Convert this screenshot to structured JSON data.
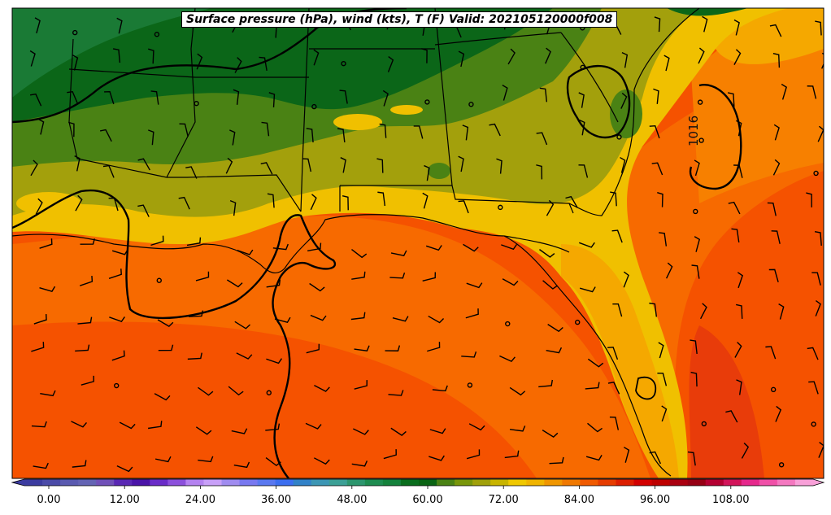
{
  "title": "Surface pressure (hPa), wind (kts), T (F) Valid: 202105120000f008",
  "isobar_labels": [
    "1016"
  ],
  "colorbar": {
    "tick_labels": [
      "0.00",
      "12.00",
      "24.00",
      "36.00",
      "48.00",
      "60.00",
      "72.00",
      "84.00",
      "96.00",
      "108.00"
    ],
    "colors": [
      "#3c3ca0",
      "#4b4ba8",
      "#5a5ab0",
      "#6464b4",
      "#7050b8",
      "#5a28b4",
      "#4a14a8",
      "#6a2cc8",
      "#8c50dc",
      "#b482f0",
      "#c8a0f8",
      "#a08cf0",
      "#7878f0",
      "#5a78f0",
      "#3c6ef0",
      "#3282c8",
      "#3c96b4",
      "#3ca096",
      "#2d966e",
      "#1e8c50",
      "#14823c",
      "#0a6e1e",
      "#0a6414",
      "#4a8214",
      "#78960a",
      "#a0a00a",
      "#c8b400",
      "#f0c800",
      "#f0b400",
      "#f09600",
      "#f07800",
      "#f05a00",
      "#e63c00",
      "#dc1e00",
      "#d20000",
      "#be0000",
      "#aa0010",
      "#960014",
      "#b40032",
      "#d2145a",
      "#e6288c",
      "#f050a8",
      "#f478c0",
      "#f8a0d8"
    ]
  },
  "map_legend_colors": {
    "temp_60": "#0b6618",
    "temp_62": "#1a7a35",
    "temp_64": "#4a8214",
    "temp_66": "#a3a00c",
    "temp_70": "#f0c000",
    "temp_72": "#f5a800",
    "temp_74": "#f78000",
    "temp_76": "#f76a00",
    "temp_78": "#f55200",
    "temp_80": "#e83c0a"
  }
}
